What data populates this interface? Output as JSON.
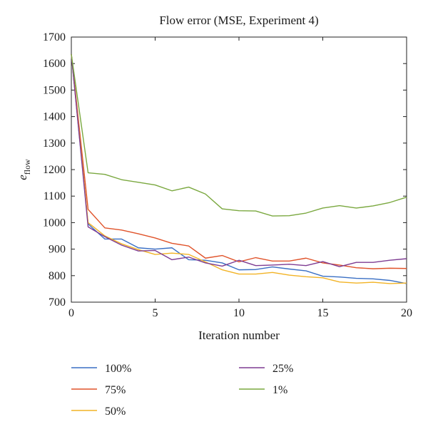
{
  "chart_data": {
    "type": "line",
    "title": "Flow error (MSE, Experiment 4)",
    "xlabel": "Iteration number",
    "ylabel_main": "e",
    "ylabel_sub": "flow",
    "xlim": [
      0,
      20
    ],
    "ylim": [
      700,
      1700
    ],
    "xticks": [
      0,
      5,
      10,
      15,
      20
    ],
    "yticks": [
      700,
      800,
      900,
      1000,
      1100,
      1200,
      1300,
      1400,
      1500,
      1600,
      1700
    ],
    "grid": false,
    "legend_position": "bottom",
    "x": [
      0,
      1,
      2,
      3,
      4,
      5,
      6,
      7,
      8,
      9,
      10,
      11,
      12,
      13,
      14,
      15,
      16,
      17,
      18,
      19,
      20
    ],
    "series": [
      {
        "name": "100%",
        "color": "#3a6fc4",
        "values": [
          1635,
          995,
          938,
          938,
          905,
          900,
          905,
          860,
          858,
          848,
          822,
          823,
          833,
          825,
          818,
          798,
          795,
          790,
          788,
          782,
          770
        ]
      },
      {
        "name": "75%",
        "color": "#e0532a",
        "values": [
          1635,
          1050,
          980,
          972,
          958,
          942,
          922,
          912,
          866,
          876,
          852,
          868,
          855,
          855,
          866,
          848,
          840,
          830,
          826,
          828,
          827
        ]
      },
      {
        "name": "50%",
        "color": "#f2b325",
        "values": [
          1635,
          1000,
          950,
          920,
          898,
          880,
          885,
          880,
          852,
          822,
          806,
          806,
          812,
          802,
          796,
          792,
          776,
          772,
          775,
          770,
          772
        ]
      },
      {
        "name": "25%",
        "color": "#7e3c92",
        "values": [
          1635,
          984,
          947,
          915,
          893,
          895,
          860,
          870,
          848,
          836,
          858,
          838,
          840,
          843,
          838,
          853,
          834,
          850,
          850,
          858,
          864
        ]
      },
      {
        "name": "1%",
        "color": "#7aa83f",
        "values": [
          1635,
          1188,
          1182,
          1162,
          1152,
          1142,
          1120,
          1134,
          1108,
          1052,
          1045,
          1044,
          1025,
          1026,
          1036,
          1055,
          1064,
          1055,
          1063,
          1076,
          1096
        ]
      }
    ]
  }
}
